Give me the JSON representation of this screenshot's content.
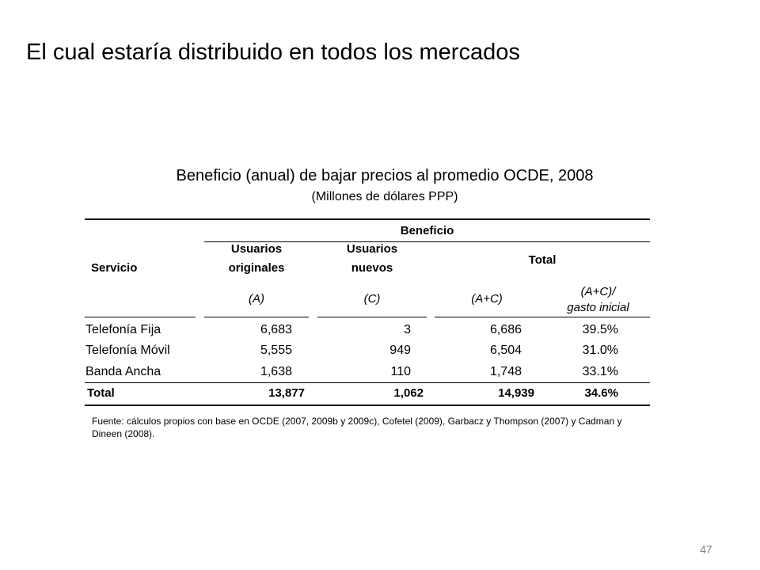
{
  "slide": {
    "title": "El cual estaría distribuido en todos los mercados",
    "page_number": "47"
  },
  "table": {
    "title": "Beneficio (anual) de bajar precios al promedio OCDE, 2008",
    "subtitle": "(Millones de dólares PPP)",
    "group_header": "Beneficio",
    "col_servicio": "Servicio",
    "col_originales": [
      "Usuarios",
      "originales"
    ],
    "col_nuevos": [
      "Usuarios",
      "nuevos"
    ],
    "col_total": "Total",
    "sub_a": "(A)",
    "sub_c": "(C)",
    "sub_ac": "(A+C)",
    "sub_ratio": [
      "(A+C)/",
      "gasto inicial"
    ],
    "rows": [
      {
        "servicio": "Telefonía Fija",
        "a": "6,683",
        "c": "3",
        "ac": "6,686",
        "ratio": "39.5%"
      },
      {
        "servicio": "Telefonía Móvil",
        "a": "5,555",
        "c": "949",
        "ac": "6,504",
        "ratio": "31.0%"
      },
      {
        "servicio": "Banda Ancha",
        "a": "1,638",
        "c": "110",
        "ac": "1,748",
        "ratio": "33.1%"
      }
    ],
    "total_row": {
      "servicio": "Total",
      "a": "13,877",
      "c": "1,062",
      "ac": "14,939",
      "ratio": "34.6%"
    },
    "source": "Fuente: cálculos propios con base en OCDE (2007, 2009b y 2009c), Cofetel (2009), Garbacz y Thompson (2007) y Cadman y Dineen (2008)."
  }
}
